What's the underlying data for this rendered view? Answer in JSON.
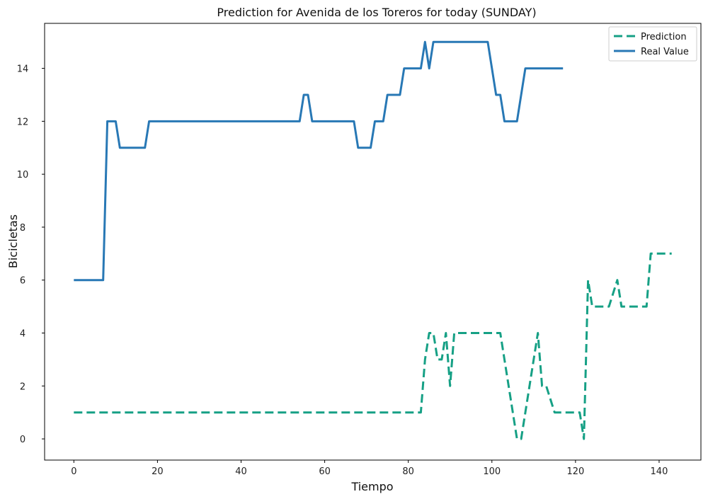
{
  "chart_data": {
    "type": "line",
    "title": "Prediction for Avenida de los Toreros for today (SUNDAY)",
    "xlabel": "Tiempo",
    "ylabel": "Bicicletas",
    "xlim": [
      -7,
      150
    ],
    "ylim": [
      -0.8,
      15.7
    ],
    "xticks": [
      0,
      20,
      40,
      60,
      80,
      100,
      120,
      140
    ],
    "yticks": [
      0,
      2,
      4,
      6,
      8,
      10,
      12,
      14
    ],
    "grid": false,
    "legend_position": "top-right",
    "series": [
      {
        "name": "Prediction",
        "color": "#16a085",
        "style": "dashed",
        "points": [
          [
            0,
            1
          ],
          [
            83,
            1
          ],
          [
            84,
            3
          ],
          [
            85,
            4
          ],
          [
            86,
            4
          ],
          [
            87,
            3
          ],
          [
            88,
            3
          ],
          [
            89,
            4
          ],
          [
            90,
            2
          ],
          [
            91,
            4
          ],
          [
            102,
            4
          ],
          [
            104,
            2
          ],
          [
            106,
            0
          ],
          [
            107,
            0
          ],
          [
            108,
            1
          ],
          [
            110,
            3
          ],
          [
            111,
            4
          ],
          [
            112,
            2
          ],
          [
            113,
            2
          ],
          [
            115,
            1
          ],
          [
            121,
            1
          ],
          [
            122,
            0
          ],
          [
            123,
            6
          ],
          [
            124,
            5
          ],
          [
            128,
            5
          ],
          [
            130,
            6
          ],
          [
            131,
            5
          ],
          [
            137,
            5
          ],
          [
            138,
            7
          ],
          [
            143,
            7
          ]
        ]
      },
      {
        "name": "Real Value",
        "color": "#2878b5",
        "style": "solid",
        "points": [
          [
            0,
            6
          ],
          [
            7,
            6
          ],
          [
            8,
            12
          ],
          [
            10,
            12
          ],
          [
            11,
            11
          ],
          [
            17,
            11
          ],
          [
            18,
            12
          ],
          [
            54,
            12
          ],
          [
            55,
            13
          ],
          [
            56,
            13
          ],
          [
            57,
            12
          ],
          [
            67,
            12
          ],
          [
            68,
            11
          ],
          [
            71,
            11
          ],
          [
            72,
            12
          ],
          [
            74,
            12
          ],
          [
            75,
            13
          ],
          [
            78,
            13
          ],
          [
            79,
            14
          ],
          [
            83,
            14
          ],
          [
            84,
            15
          ],
          [
            85,
            14
          ],
          [
            86,
            15
          ],
          [
            99,
            15
          ],
          [
            101,
            13
          ],
          [
            102,
            13
          ],
          [
            103,
            12
          ],
          [
            106,
            12
          ],
          [
            108,
            14
          ],
          [
            117,
            14
          ]
        ]
      }
    ]
  }
}
